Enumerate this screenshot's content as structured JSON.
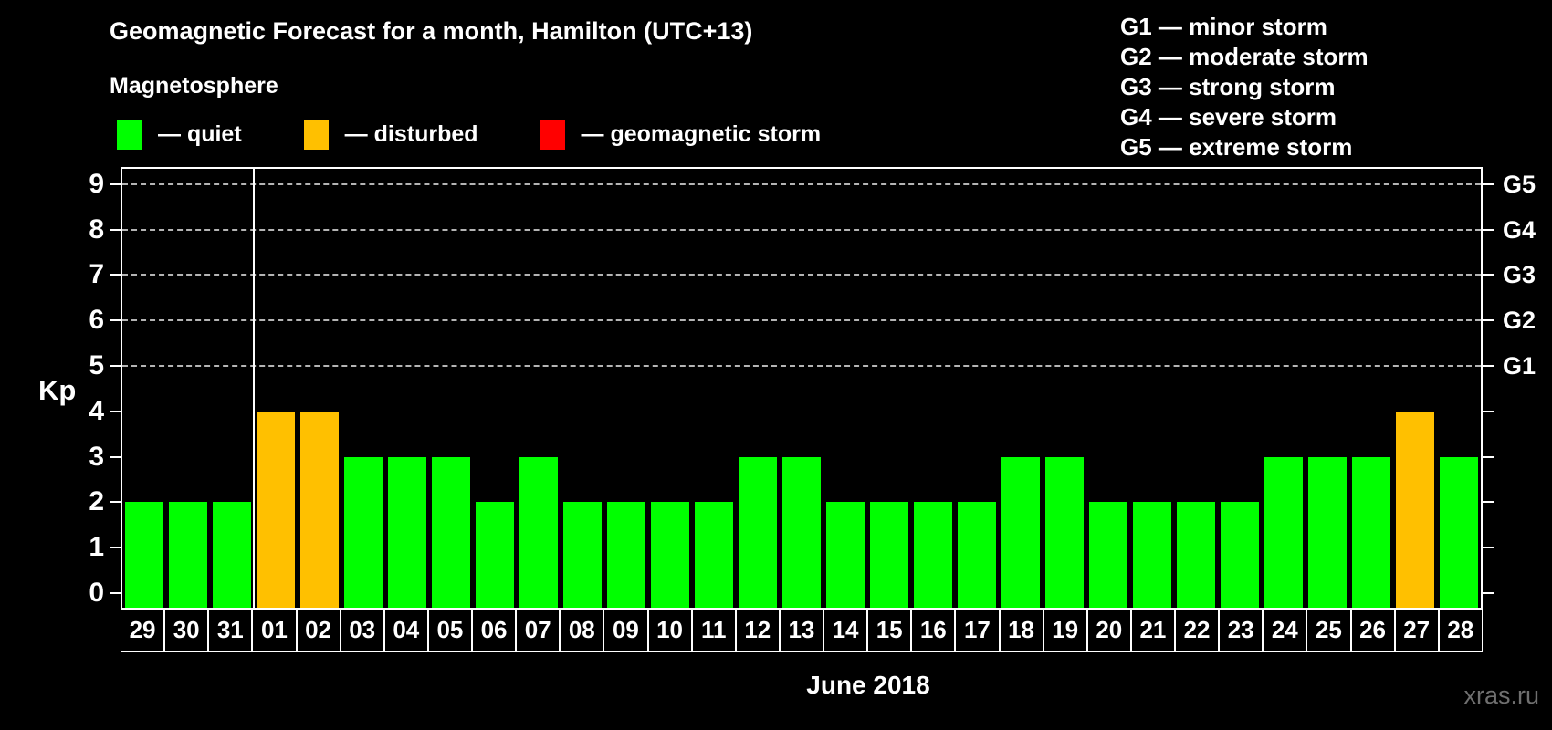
{
  "header": {
    "title": "Geomagnetic Forecast for a month, Hamilton (UTC+13)"
  },
  "magnetosphere_legend": {
    "title": "Magnetosphere",
    "items": [
      {
        "label": "— quiet",
        "status": "quiet",
        "color": "#00ff00"
      },
      {
        "label": "— disturbed",
        "status": "disturbed",
        "color": "#ffc000"
      },
      {
        "label": "— geomagnetic storm",
        "status": "storm",
        "color": "#ff0000"
      }
    ]
  },
  "storm_scale_legend": {
    "items": [
      "G1 — minor storm",
      "G2 — moderate storm",
      "G3 — strong storm",
      "G4 — severe storm",
      "G5 — extreme storm"
    ]
  },
  "chart_data": {
    "type": "bar",
    "title": "Geomagnetic Forecast for a month, Hamilton (UTC+13)",
    "xlabel": "June 2018",
    "ylabel": "Kp",
    "ylim": [
      0,
      9
    ],
    "yticks": [
      0,
      1,
      2,
      3,
      4,
      5,
      6,
      7,
      8,
      9
    ],
    "gridlines_at": [
      5,
      6,
      7,
      8,
      9
    ],
    "grid_style": "dashed",
    "legend_position": "top",
    "right_axis_labels": [
      {
        "kp": 5,
        "label": "G1"
      },
      {
        "kp": 6,
        "label": "G2"
      },
      {
        "kp": 7,
        "label": "G3"
      },
      {
        "kp": 8,
        "label": "G4"
      },
      {
        "kp": 9,
        "label": "G5"
      }
    ],
    "categories": [
      "29",
      "30",
      "31",
      "01",
      "02",
      "03",
      "04",
      "05",
      "06",
      "07",
      "08",
      "09",
      "10",
      "11",
      "12",
      "13",
      "14",
      "15",
      "16",
      "17",
      "18",
      "19",
      "20",
      "21",
      "22",
      "23",
      "24",
      "25",
      "26",
      "27",
      "28"
    ],
    "values": [
      2,
      2,
      2,
      4,
      4,
      3,
      3,
      3,
      2,
      3,
      2,
      2,
      2,
      2,
      3,
      3,
      2,
      2,
      2,
      2,
      3,
      3,
      2,
      2,
      2,
      2,
      3,
      3,
      3,
      4,
      3
    ],
    "statuses": [
      "quiet",
      "quiet",
      "quiet",
      "disturbed",
      "disturbed",
      "quiet",
      "quiet",
      "quiet",
      "quiet",
      "quiet",
      "quiet",
      "quiet",
      "quiet",
      "quiet",
      "quiet",
      "quiet",
      "quiet",
      "quiet",
      "quiet",
      "quiet",
      "quiet",
      "quiet",
      "quiet",
      "quiet",
      "quiet",
      "quiet",
      "quiet",
      "quiet",
      "quiet",
      "disturbed",
      "quiet"
    ],
    "status_colors": {
      "quiet": "#00ff00",
      "disturbed": "#ffc000",
      "storm": "#ff0000"
    },
    "month_boundary_after_index": 2
  },
  "footer": {
    "month_label": "June 2018",
    "watermark": "xras.ru"
  }
}
